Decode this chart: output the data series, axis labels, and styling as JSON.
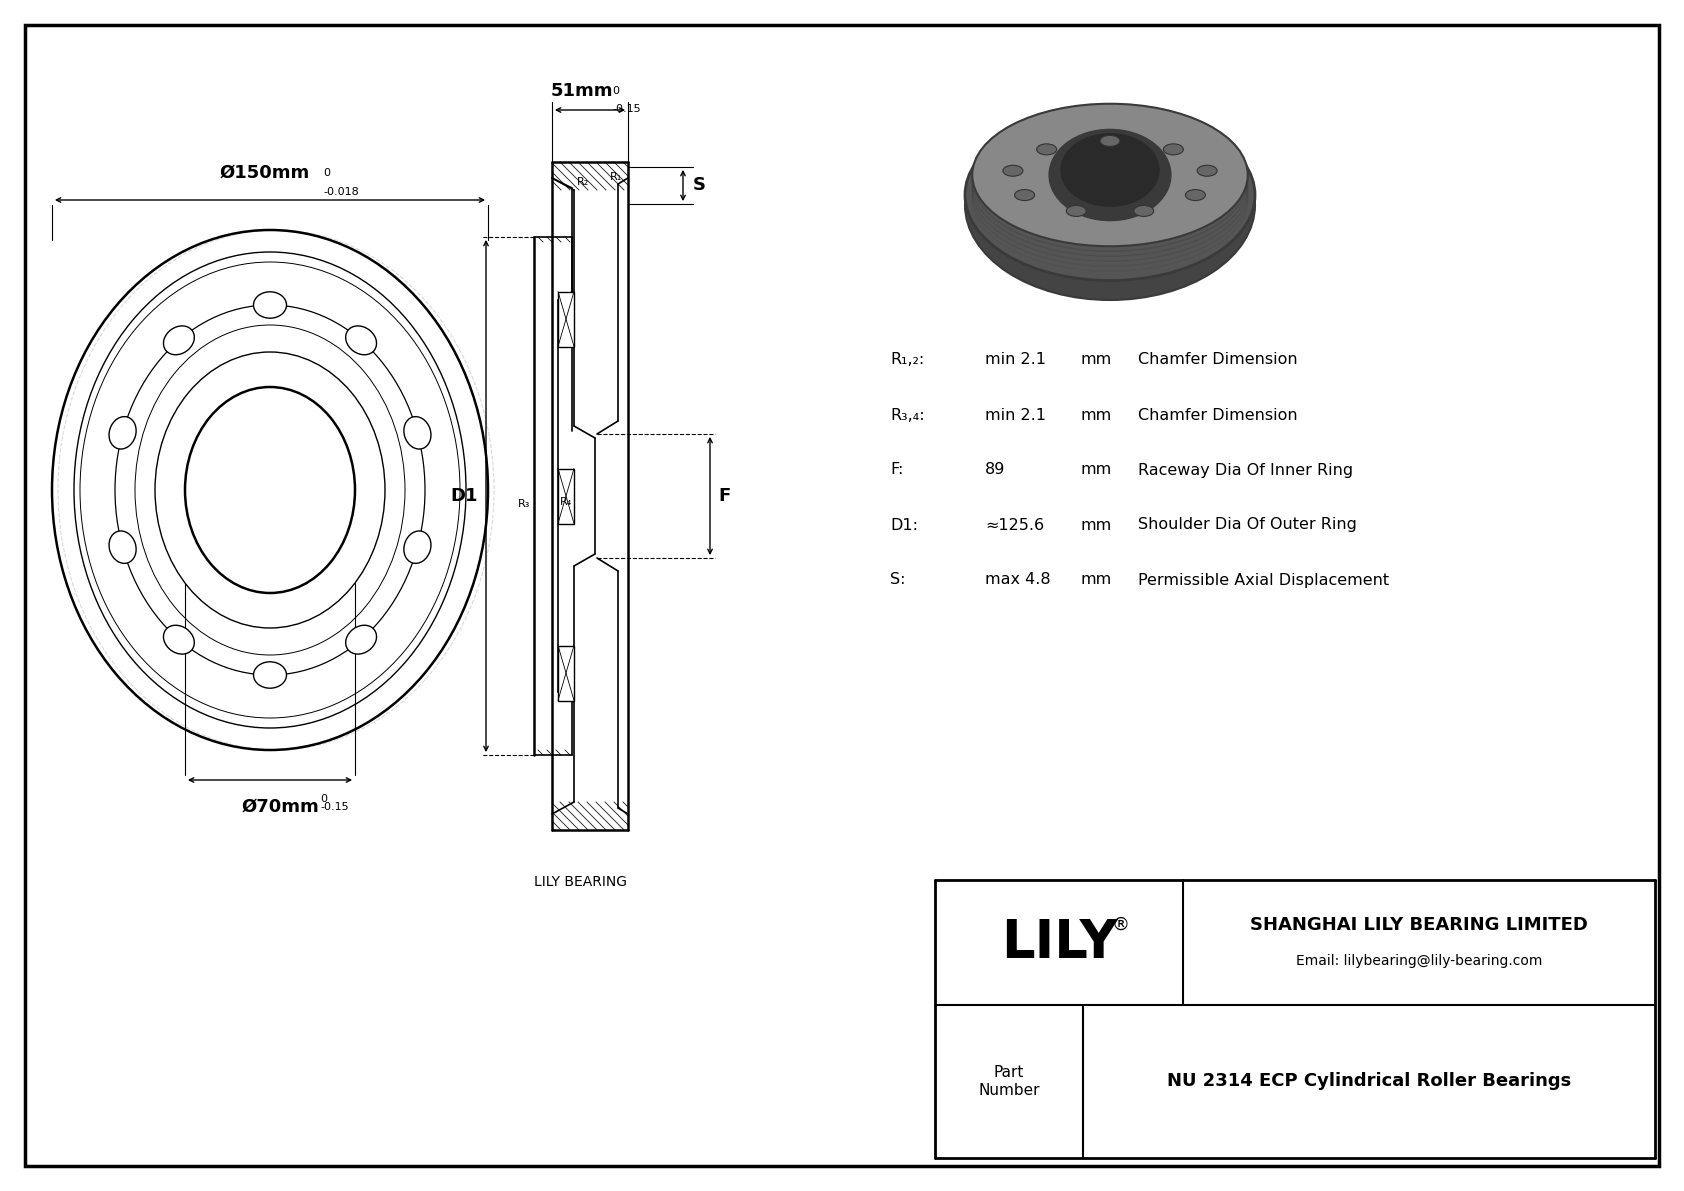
{
  "bg_color": "#ffffff",
  "line_color": "#000000",
  "dim_outer": "Ø150mm",
  "dim_outer_tol_top": "0",
  "dim_outer_tol_bot": "-0.018",
  "dim_width": "51mm",
  "dim_width_tol_top": "0",
  "dim_width_tol_bot": "-0.15",
  "dim_inner": "Ø70mm",
  "dim_inner_tol_top": "0",
  "dim_inner_tol_bot": "-0.15",
  "label_S": "S",
  "label_D1": "D1",
  "label_F": "F",
  "label_R12": "R₁,₂:",
  "label_R34": "R₃,₄:",
  "label_F_param": "F:",
  "label_D1_param": "D1:",
  "label_S_param": "S:",
  "val_R12": "min 2.1",
  "val_R34": "min 2.1",
  "val_F": "89",
  "val_D1": "≈125.6",
  "val_S": "max 4.8",
  "unit_mm": "mm",
  "desc_R12": "Chamfer Dimension",
  "desc_R34": "Chamfer Dimension",
  "desc_F": "Raceway Dia Of Inner Ring",
  "desc_D1": "Shoulder Dia Of Outer Ring",
  "desc_S": "Permissible Axial Displacement",
  "lily_bearing_label": "LILY BEARING",
  "company": "SHANGHAI LILY BEARING LIMITED",
  "email": "Email: lilybearing@lily-bearing.com",
  "part_label": "Part\nNumber",
  "part_number": "NU 2314 ECP Cylindrical Roller Bearings",
  "lily_text": "LILY"
}
